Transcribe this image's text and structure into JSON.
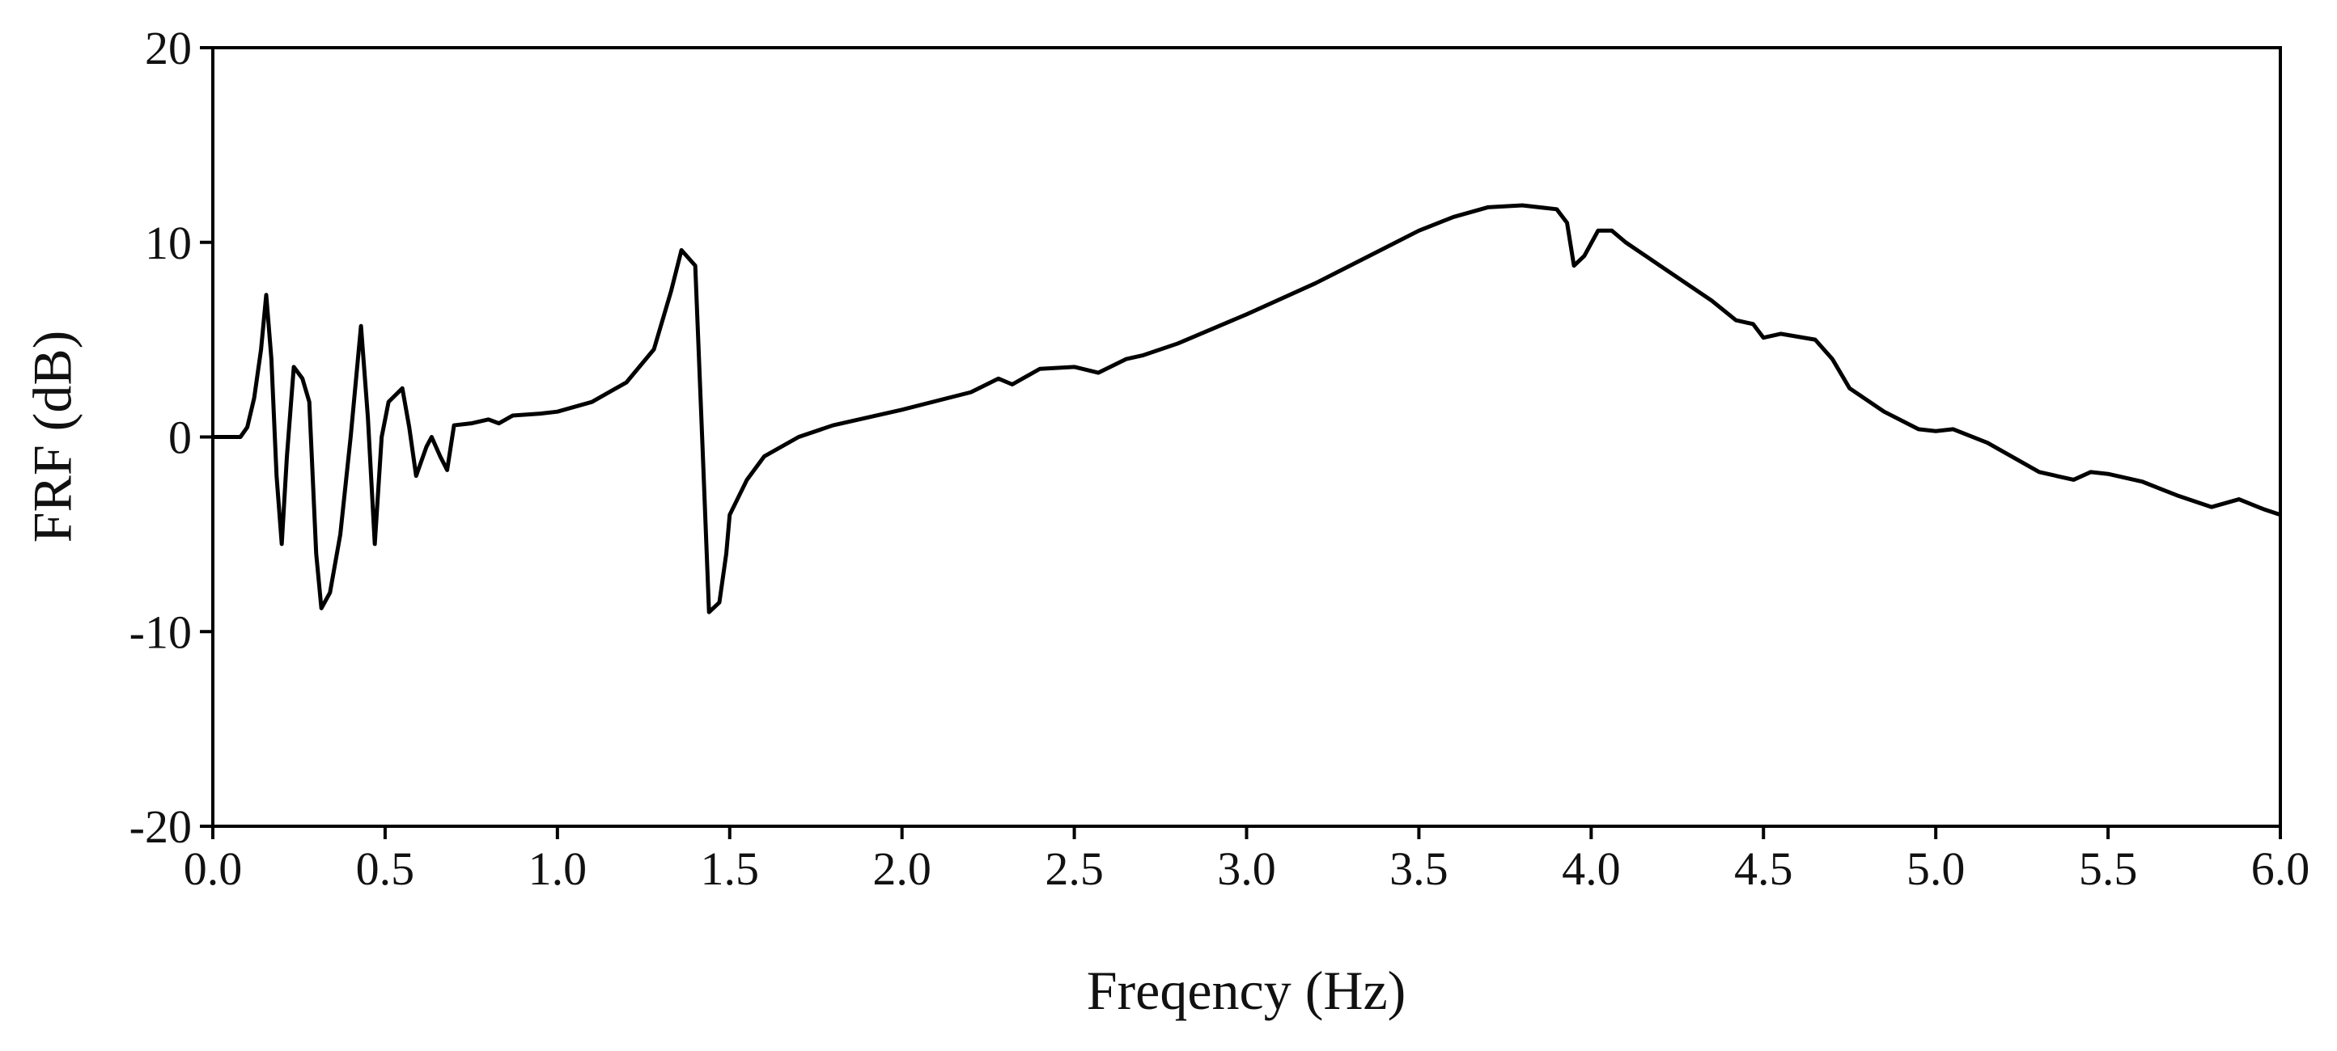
{
  "chart_data": {
    "type": "line",
    "xlabel": "Freqency (Hz)",
    "ylabel": "FRF (dB)",
    "xlim": [
      0,
      6
    ],
    "ylim": [
      -20,
      20
    ],
    "xticks": [
      {
        "value": 0,
        "label": "0.0"
      },
      {
        "value": 0.5,
        "label": "0.5"
      },
      {
        "value": 1,
        "label": "1.0"
      },
      {
        "value": 1.5,
        "label": "1.5"
      },
      {
        "value": 2,
        "label": "2.0"
      },
      {
        "value": 2.5,
        "label": "2.5"
      },
      {
        "value": 3,
        "label": "3.0"
      },
      {
        "value": 3.5,
        "label": "3.5"
      },
      {
        "value": 4,
        "label": "4.0"
      },
      {
        "value": 4.5,
        "label": "4.5"
      },
      {
        "value": 5,
        "label": "5.0"
      },
      {
        "value": 5.5,
        "label": "5.5"
      },
      {
        "value": 6,
        "label": "6.0"
      }
    ],
    "yticks": [
      -20,
      -10,
      0,
      10,
      20
    ],
    "grid": false,
    "series": [
      {
        "color": "#000000",
        "x": [
          0,
          0.05,
          0.08,
          0.1,
          0.12,
          0.14,
          0.155,
          0.17,
          0.185,
          0.2,
          0.215,
          0.235,
          0.26,
          0.28,
          0.3,
          0.315,
          0.34,
          0.37,
          0.4,
          0.43,
          0.45,
          0.47,
          0.49,
          0.51,
          0.55,
          0.57,
          0.59,
          0.62,
          0.635,
          0.66,
          0.68,
          0.7,
          0.75,
          0.8,
          0.83,
          0.87,
          0.95,
          1.0,
          1.1,
          1.2,
          1.28,
          1.33,
          1.36,
          1.4,
          1.42,
          1.44,
          1.47,
          1.49,
          1.5,
          1.55,
          1.6,
          1.7,
          1.8,
          2.0,
          2.2,
          2.28,
          2.32,
          2.4,
          2.5,
          2.57,
          2.65,
          2.7,
          2.8,
          3.0,
          3.2,
          3.4,
          3.5,
          3.6,
          3.7,
          3.8,
          3.9,
          3.93,
          3.95,
          3.98,
          4.02,
          4.06,
          4.1,
          4.2,
          4.35,
          4.42,
          4.47,
          4.5,
          4.55,
          4.65,
          4.7,
          4.75,
          4.85,
          4.95,
          5.0,
          5.05,
          5.15,
          5.3,
          5.4,
          5.45,
          5.5,
          5.6,
          5.7,
          5.8,
          5.88,
          5.95,
          6.0
        ],
        "values": [
          0,
          0,
          0,
          0.5,
          2,
          4.5,
          7.3,
          4,
          -2,
          -5.5,
          -1,
          3.6,
          3,
          1.8,
          -6,
          -8.8,
          -8,
          -5,
          0,
          5.7,
          1,
          -5.5,
          0,
          1.8,
          2.5,
          0.5,
          -2,
          -0.5,
          0,
          -1,
          -1.7,
          0.6,
          0.7,
          0.9,
          0.7,
          1.1,
          1.2,
          1.3,
          1.8,
          2.8,
          4.5,
          7.5,
          9.6,
          8.8,
          0,
          -9,
          -8.5,
          -6,
          -4,
          -2.2,
          -1,
          0,
          0.6,
          1.4,
          2.3,
          3,
          2.7,
          3.5,
          3.6,
          3.3,
          4,
          4.2,
          4.8,
          6.3,
          7.9,
          9.7,
          10.6,
          11.3,
          11.8,
          11.9,
          11.7,
          11,
          8.8,
          9.3,
          10.6,
          10.6,
          10,
          8.8,
          7,
          6,
          5.8,
          5.1,
          5.3,
          5,
          4,
          2.5,
          1.3,
          0.4,
          0.3,
          0.4,
          -0.3,
          -1.8,
          -2.2,
          -1.8,
          -1.9,
          -2.3,
          -3,
          -3.6,
          -3.2,
          -3.7,
          -4
        ]
      }
    ]
  }
}
